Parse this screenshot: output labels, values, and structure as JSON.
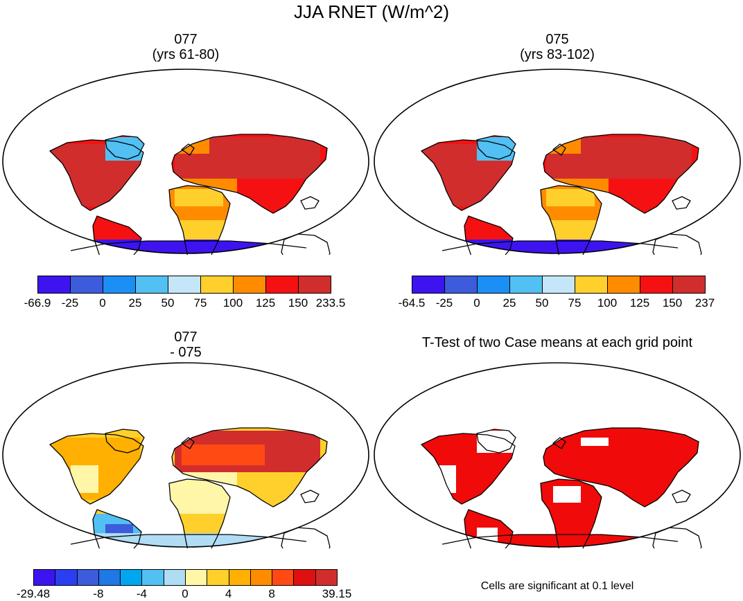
{
  "title": "JJA RNET (W/m^2)",
  "panels": [
    {
      "id": "case1",
      "title_line1": "077",
      "title_line2": "(yrs 61-80)",
      "colors": [
        "#3d14f0",
        "#3c5cdc",
        "#1b8ff5",
        "#52c0f2",
        "#c5e6f8",
        "#ffd02c",
        "#ff8c00",
        "#f51111",
        "#d22d2d"
      ],
      "legend_labels": [
        "-66.9",
        "-25",
        "0",
        "25",
        "50",
        "75",
        "100",
        "125",
        "150",
        "233.5"
      ]
    },
    {
      "id": "case2",
      "title_line1": "075",
      "title_line2": "(yrs 83-102)",
      "colors": [
        "#3d14f0",
        "#3c5cdc",
        "#1b8ff5",
        "#52c0f2",
        "#c5e6f8",
        "#ffd02c",
        "#ff8c00",
        "#f51111",
        "#d22d2d"
      ],
      "legend_labels": [
        "-64.5",
        "-25",
        "0",
        "25",
        "50",
        "75",
        "100",
        "125",
        "150",
        "237"
      ]
    },
    {
      "id": "diff",
      "title_line1": "077",
      "title_line2": "- 075",
      "colors": [
        "#3d14f0",
        "#2a3ff0",
        "#3c5cdc",
        "#1e78e6",
        "#00a6f0",
        "#52c0f2",
        "#b0dcf4",
        "#fff6a8",
        "#ffd02c",
        "#ffb000",
        "#ff8c00",
        "#ff4a14",
        "#e01010",
        "#d22d2d"
      ],
      "legend_labels": [
        "-29.48",
        "",
        "",
        "-8",
        "",
        "-4",
        "",
        "0",
        "",
        "4",
        "",
        "8",
        "",
        "",
        "39.15"
      ]
    },
    {
      "id": "ttest",
      "title_line1": "T-Test of two Case means at each grid point",
      "note": "Cells are significant at 0.1 level",
      "colors": [
        "#f00a0a"
      ]
    }
  ]
}
